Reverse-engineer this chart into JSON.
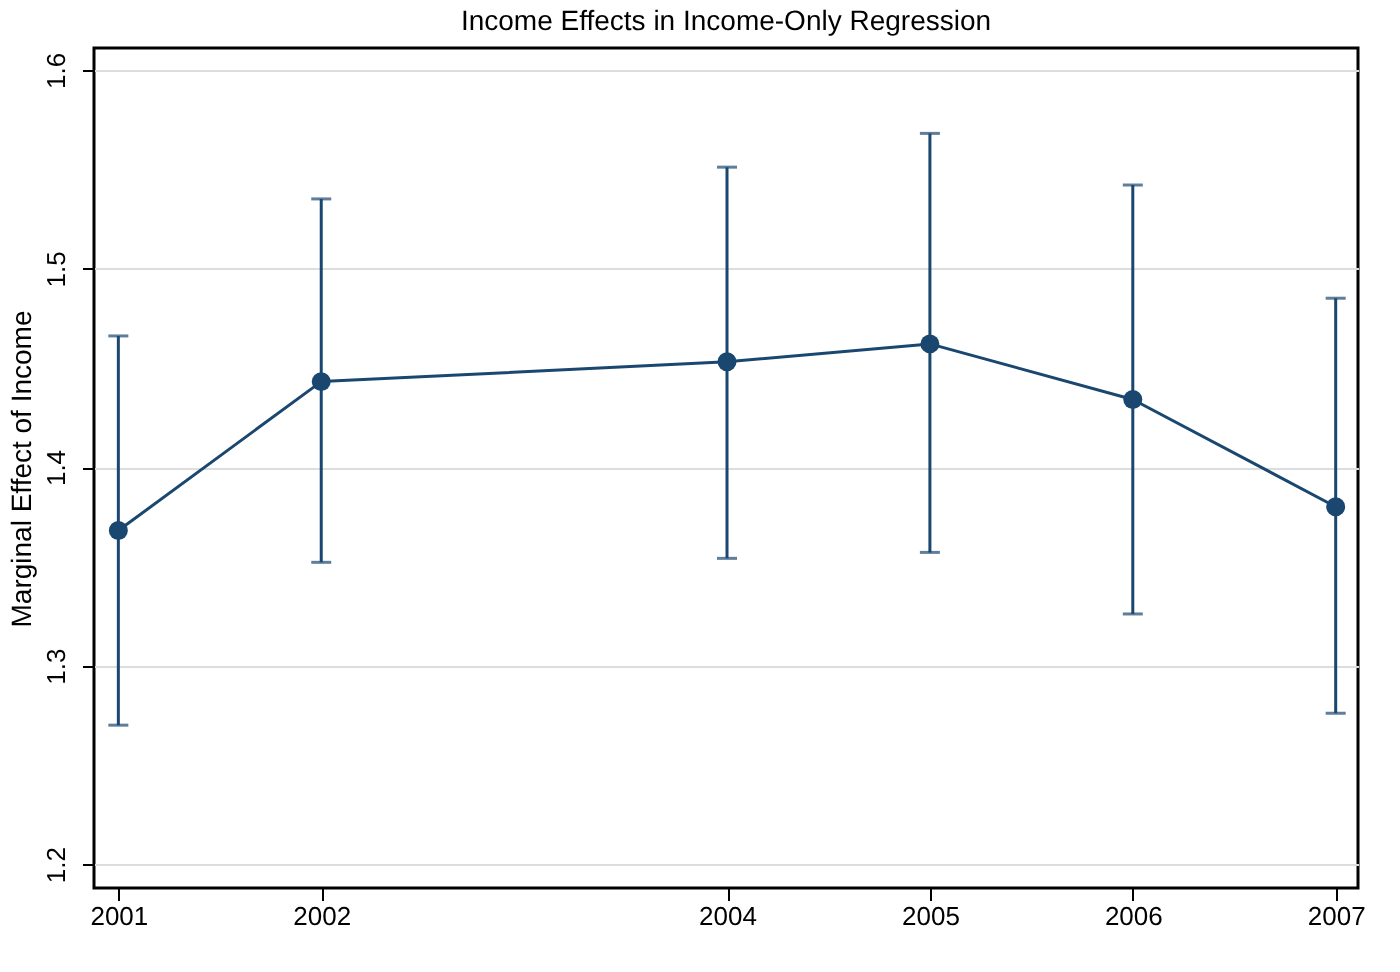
{
  "chart_data": {
    "type": "line",
    "title": "Income Effects in Income-Only Regression",
    "ylabel": "Marginal Effect of Income",
    "x": [
      2001,
      2002,
      2004,
      2005,
      2006,
      2007
    ],
    "series": [
      {
        "color": "#1a476f",
        "values": [
          1.368,
          1.443,
          1.453,
          1.462,
          1.434,
          1.38
        ],
        "errors": [
          [
            1.27,
            1.466
          ],
          [
            1.352,
            1.535
          ],
          [
            1.354,
            1.551
          ],
          [
            1.357,
            1.568
          ],
          [
            1.326,
            1.542
          ],
          [
            1.276,
            1.485
          ]
        ]
      }
    ],
    "xlim": [
      2000.88,
      2007.11
    ],
    "xticks": [
      2001,
      2002,
      2004,
      2005,
      2006,
      2007
    ],
    "ylim": [
      1.188,
      1.611
    ],
    "yticks": [
      1.2,
      1.3,
      1.4,
      1.5,
      1.6
    ],
    "grid": "y",
    "marker": "circle",
    "line_style": "solid"
  }
}
